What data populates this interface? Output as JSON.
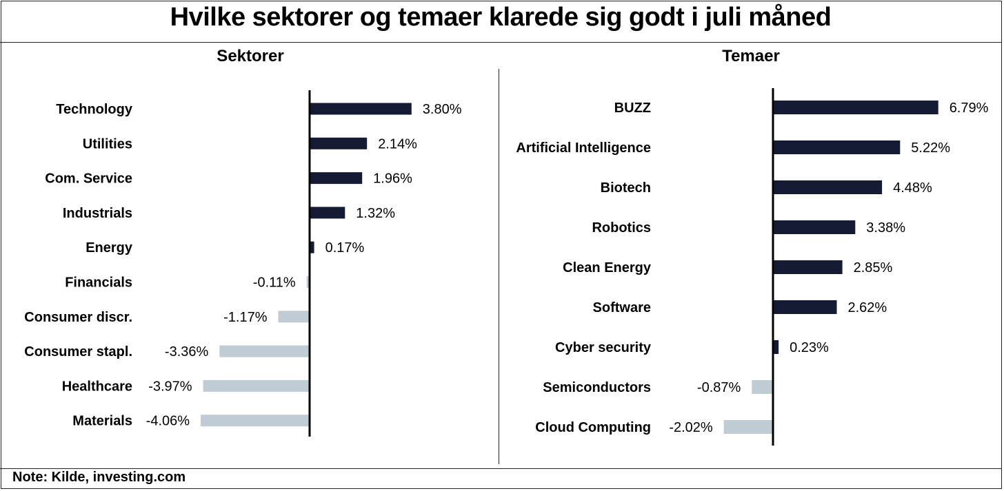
{
  "title": "Hvilke sektorer og temaer klarede sig godt i juli måned",
  "note": "Note: Kilde, investing.com",
  "colors": {
    "positive": "#141b33",
    "negative": "#bfccd3",
    "axis": "#000000"
  },
  "chart_data": [
    {
      "type": "bar",
      "orientation": "horizontal",
      "title": "Sektorer",
      "categories": [
        "Technology",
        "Utilities",
        "Com. Service",
        "Industrials",
        "Energy",
        "Financials",
        "Consumer discr.",
        "Consumer stapl.",
        "Healthcare",
        "Materials"
      ],
      "values": [
        3.8,
        2.14,
        1.96,
        1.32,
        0.17,
        -0.11,
        -1.17,
        -3.36,
        -3.97,
        -4.06
      ],
      "labels": [
        "3.80%",
        "2.14%",
        "1.96%",
        "1.32%",
        "0.17%",
        "-0.11%",
        "-1.17%",
        "-3.36%",
        "-3.97%",
        "-4.06%"
      ],
      "unit": "%",
      "grid": false,
      "legend": "none"
    },
    {
      "type": "bar",
      "orientation": "horizontal",
      "title": "Temaer",
      "categories": [
        "BUZZ",
        "Artificial Intelligence",
        "Biotech",
        "Robotics",
        "Clean Energy",
        "Software",
        "Cyber security",
        "Semiconductors",
        "Cloud Computing"
      ],
      "values": [
        6.79,
        5.22,
        4.48,
        3.38,
        2.85,
        2.62,
        0.23,
        -0.87,
        -2.02
      ],
      "labels": [
        "6.79%",
        "5.22%",
        "4.48%",
        "3.38%",
        "2.85%",
        "2.62%",
        "0.23%",
        "-0.87%",
        "-2.02%"
      ],
      "unit": "%",
      "grid": false,
      "legend": "none"
    }
  ]
}
